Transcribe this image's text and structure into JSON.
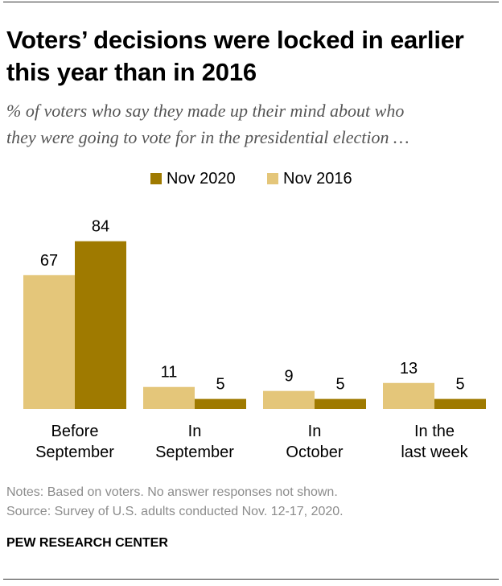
{
  "header": {
    "title_line1": "Voters’ decisions were locked in earlier",
    "title_line2": "this year than in 2016",
    "subtitle_line1": "% of voters who say they made up their mind about who",
    "subtitle_line2": "they were going to vote for in the presidential election …"
  },
  "chart_data": {
    "type": "bar",
    "title": "Voters’ decisions were locked in earlier this year than in 2016",
    "subtitle": "% of voters who say they made up their mind about who they were going to vote for in the presidential election …",
    "categories": [
      [
        "Before",
        "September"
      ],
      [
        "In",
        "September"
      ],
      [
        "In",
        "October"
      ],
      [
        "In the",
        "last week"
      ]
    ],
    "series": [
      {
        "name": "Nov 2016",
        "values": [
          67,
          11,
          9,
          13
        ],
        "color": "#e4c67a"
      },
      {
        "name": "Nov 2020",
        "values": [
          84,
          5,
          5,
          5
        ],
        "color": "#9f7a00"
      }
    ],
    "legend_order": [
      "Nov 2020",
      "Nov 2016"
    ],
    "legend_position": "top",
    "ylim": [
      0,
      100
    ],
    "grid": false,
    "xlabel": "",
    "ylabel": ""
  },
  "footer": {
    "notes": "Notes: Based on voters. No answer responses not shown.",
    "source": "Source: Survey of U.S. adults conducted Nov. 12-17, 2020.",
    "brand": "PEW RESEARCH CENTER"
  },
  "colors": {
    "nov2020": "#9f7a00",
    "nov2016": "#e4c67a",
    "notes_text": "#8c8c8c",
    "subtitle_text": "#555555"
  }
}
